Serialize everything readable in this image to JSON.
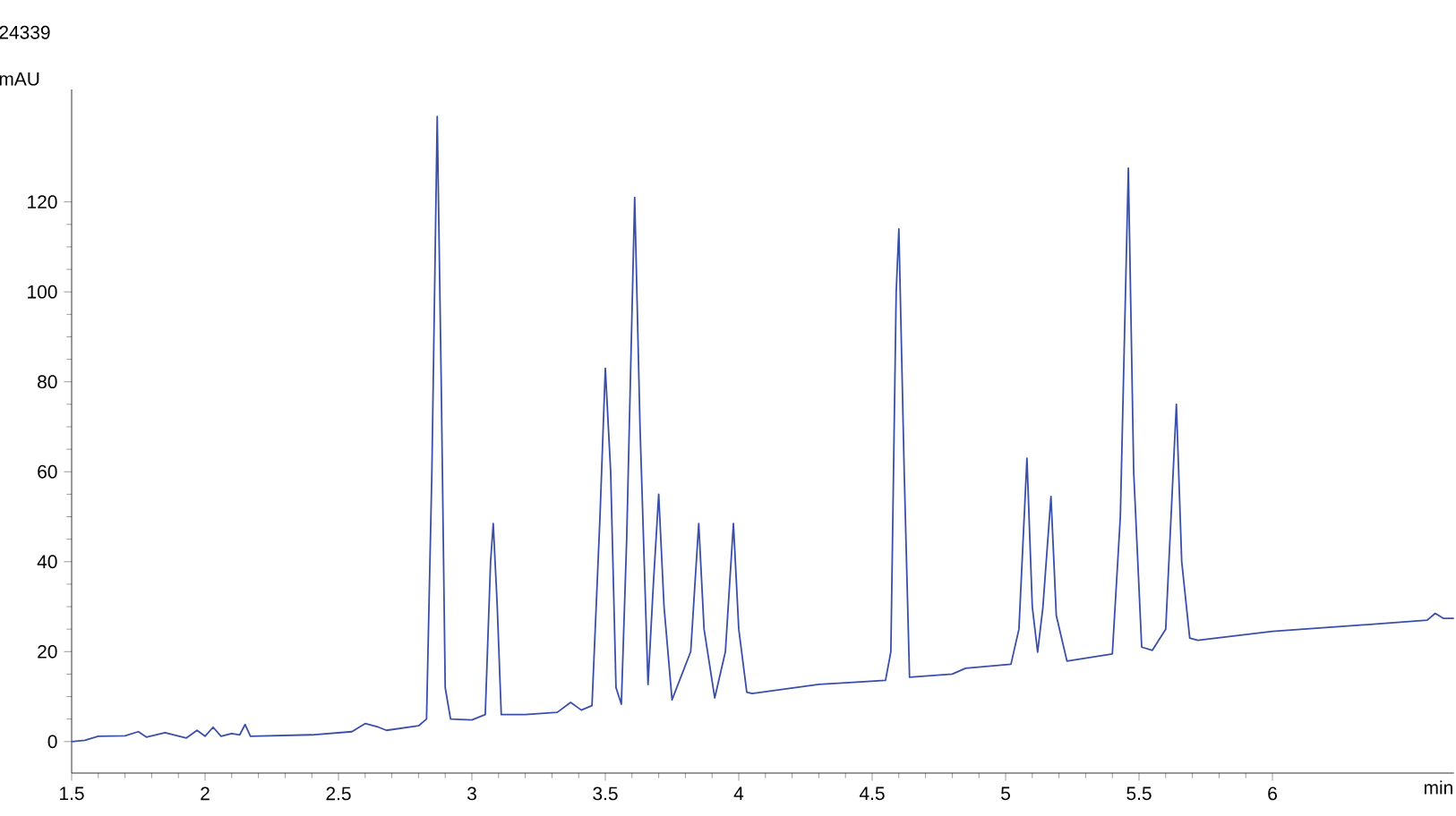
{
  "chart_data": {
    "type": "line",
    "title": "24339",
    "xlabel": "min",
    "ylabel": "mAU",
    "xlim": [
      1.5,
      6.68
    ],
    "ylim": [
      -7,
      145
    ],
    "xticks": [
      1.5,
      2,
      2.5,
      3,
      3.5,
      4,
      4.5,
      5,
      5.5,
      6
    ],
    "yticks": [
      0,
      20,
      40,
      60,
      80,
      100,
      120
    ],
    "x": [
      1.5,
      1.55,
      1.6,
      1.7,
      1.75,
      1.78,
      1.85,
      1.93,
      1.97,
      2.0,
      2.03,
      2.06,
      2.1,
      2.13,
      2.15,
      2.17,
      2.4,
      2.55,
      2.6,
      2.65,
      2.68,
      2.8,
      2.83,
      2.85,
      2.87,
      2.885,
      2.9,
      2.92,
      3.0,
      3.05,
      3.07,
      3.08,
      3.095,
      3.11,
      3.2,
      3.32,
      3.37,
      3.41,
      3.45,
      3.48,
      3.5,
      3.52,
      3.54,
      3.56,
      3.58,
      3.61,
      3.63,
      3.66,
      3.68,
      3.7,
      3.72,
      3.75,
      3.82,
      3.85,
      3.87,
      3.91,
      3.95,
      3.98,
      4.0,
      4.03,
      4.05,
      4.3,
      4.55,
      4.57,
      4.59,
      4.6,
      4.62,
      4.64,
      4.8,
      4.85,
      5.02,
      5.05,
      5.08,
      5.1,
      5.12,
      5.14,
      5.17,
      5.19,
      5.23,
      5.4,
      5.43,
      5.46,
      5.48,
      5.51,
      5.55,
      5.6,
      5.64,
      5.66,
      5.69,
      5.72,
      6.0,
      6.4,
      6.58,
      6.61,
      6.64,
      6.68
    ],
    "series": [
      {
        "color": "#3a4fa8",
        "values": [
          0,
          0.3,
          1.2,
          1.3,
          2.2,
          1,
          2,
          0.8,
          2.5,
          1.2,
          3.2,
          1.2,
          1.8,
          1.5,
          3.8,
          1.2,
          1.5,
          2.2,
          4,
          3.2,
          2.5,
          3.5,
          5,
          60,
          139,
          80,
          12,
          5,
          4.8,
          6,
          40,
          48.5,
          30,
          6,
          6,
          6.5,
          8.7,
          7,
          8,
          50,
          83,
          60,
          12,
          8.3,
          45,
          121,
          70,
          12.7,
          35,
          55,
          30,
          9.3,
          20,
          48.5,
          25,
          9.7,
          20,
          48.5,
          25,
          11,
          10.7,
          12.7,
          13.6,
          20,
          100,
          114,
          60,
          14.3,
          15,
          16.3,
          17.2,
          25,
          63,
          30,
          19.9,
          30,
          54.5,
          28,
          17.9,
          19.5,
          50,
          127.5,
          60,
          21,
          20.3,
          25,
          75,
          40,
          23,
          22.5,
          24.5,
          26.2,
          27,
          28.5,
          27.4,
          27.4
        ]
      }
    ]
  }
}
